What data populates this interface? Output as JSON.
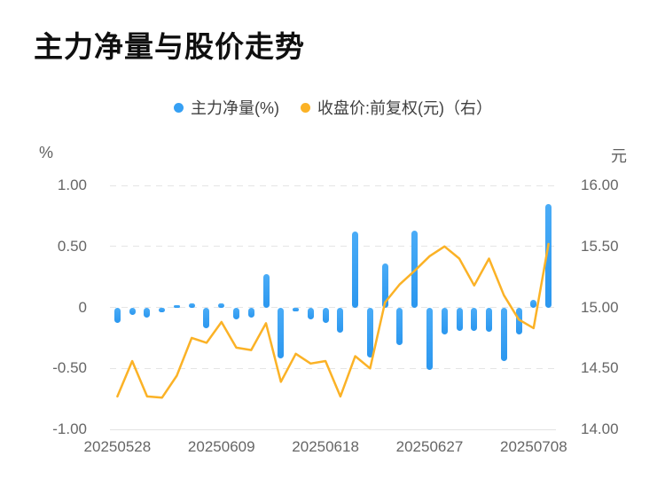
{
  "page": {
    "title": "主力净量与股价走势"
  },
  "legend": {
    "items": [
      {
        "label": "主力净量(%)",
        "color": "#36a0f4"
      },
      {
        "label": "收盘价:前复权(元)（右）",
        "color": "#fbb226"
      }
    ]
  },
  "axes": {
    "left": {
      "unit": "%",
      "ticks": [
        "1.00",
        "0.50",
        "0",
        "-0.50",
        "-1.00"
      ]
    },
    "right": {
      "unit": "元",
      "ticks": [
        "16.00",
        "15.50",
        "15.00",
        "14.50",
        "14.00"
      ]
    },
    "x": {
      "labels": [
        {
          "text": "20250528",
          "slot": 0
        },
        {
          "text": "20250609",
          "slot": 7
        },
        {
          "text": "20250618",
          "slot": 14
        },
        {
          "text": "20250627",
          "slot": 21
        },
        {
          "text": "20250708",
          "slot": 28
        }
      ]
    }
  },
  "chart_data": {
    "type": "bar+line",
    "title": "主力净量与股价走势",
    "slots": 30,
    "grid": "horizontal-dashed",
    "legend_position": "top-center",
    "bar_series": {
      "name": "主力净量(%)",
      "axis": "left",
      "color": "#36a0f4",
      "ylim": [
        -1.0,
        1.0
      ],
      "values": [
        -0.13,
        -0.06,
        -0.08,
        -0.04,
        0.02,
        0.03,
        -0.17,
        0.03,
        -0.1,
        -0.08,
        0.27,
        -0.42,
        -0.03,
        -0.1,
        -0.13,
        -0.21,
        0.62,
        -0.41,
        0.36,
        -0.31,
        0.63,
        -0.51,
        -0.22,
        -0.19,
        -0.19,
        -0.2,
        -0.44,
        -0.22,
        0.06,
        0.85
      ]
    },
    "line_series": {
      "name": "收盘价:前复权(元)",
      "axis": "right",
      "color": "#fbb226",
      "ylim": [
        14.0,
        16.0
      ],
      "values": [
        14.27,
        14.56,
        14.27,
        14.26,
        14.44,
        14.75,
        14.71,
        14.88,
        14.67,
        14.65,
        14.87,
        14.39,
        14.62,
        14.54,
        14.56,
        14.27,
        14.6,
        14.5,
        15.04,
        15.19,
        15.3,
        15.42,
        15.5,
        15.4,
        15.18,
        15.4,
        15.1,
        14.9,
        14.83,
        15.52
      ]
    }
  }
}
